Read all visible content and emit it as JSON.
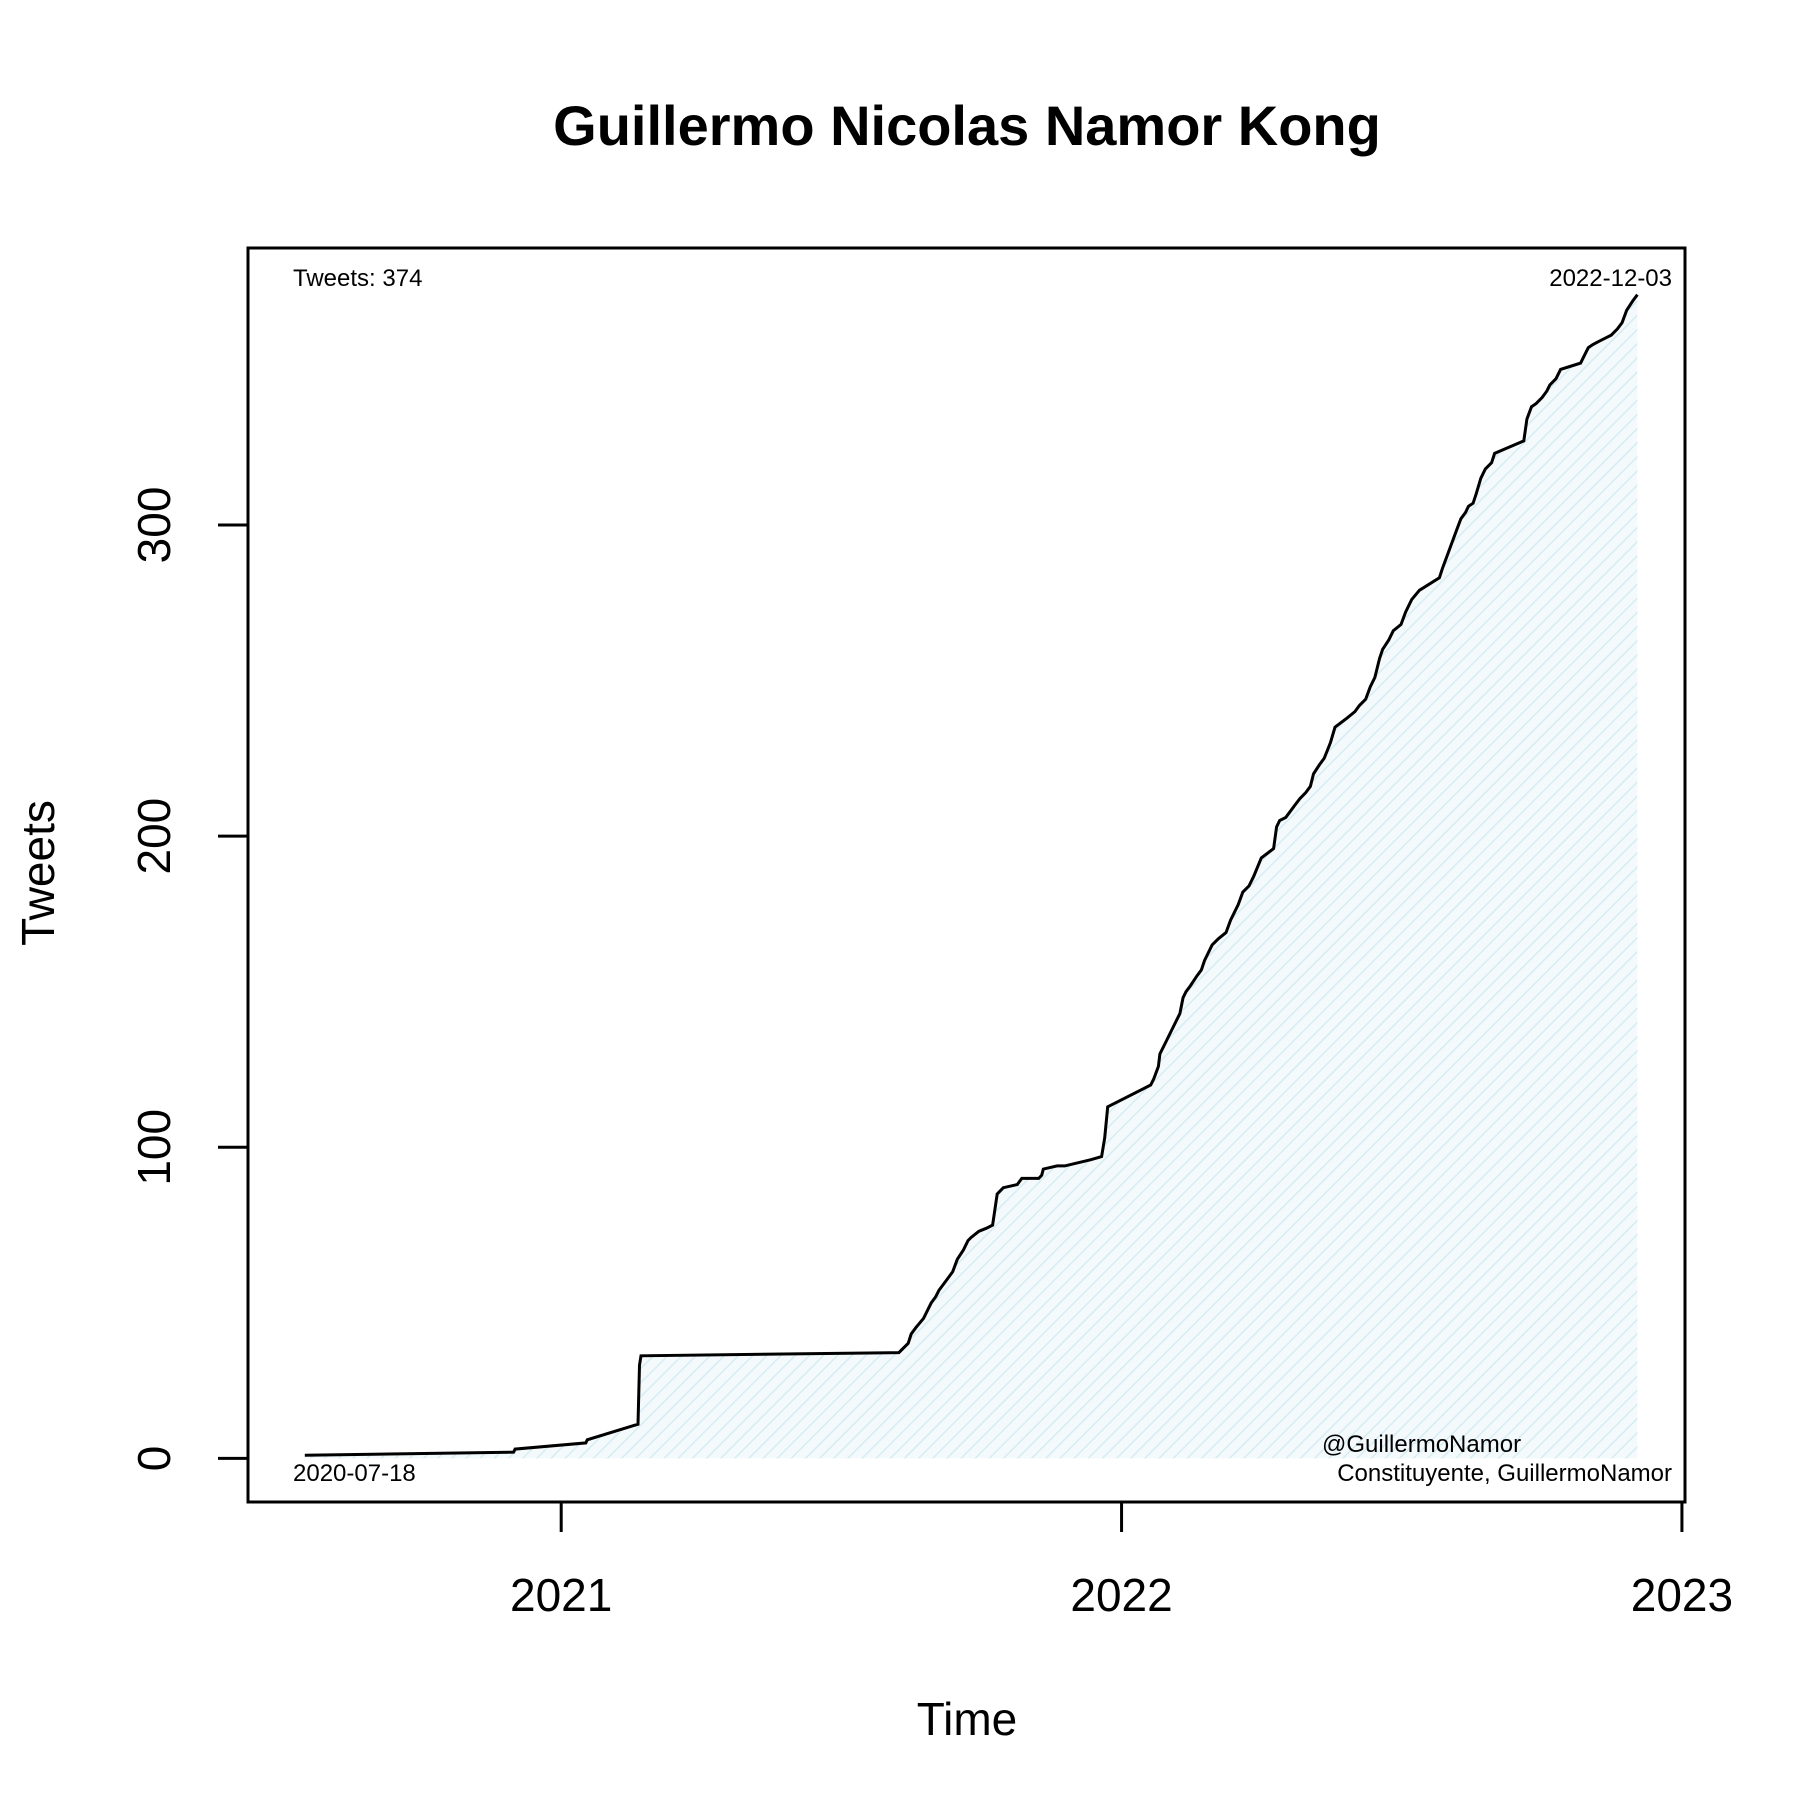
{
  "chart_data": {
    "type": "line",
    "title": "Guillermo Nicolas Namor Kong",
    "xlabel": "Time",
    "ylabel": "Tweets",
    "x_ticks": [
      "2021-01-01",
      "2022-01-01",
      "2023-01-01"
    ],
    "x_tick_labels": [
      "2021",
      "2022",
      "2023"
    ],
    "y_ticks": [
      0,
      100,
      200,
      300
    ],
    "y_tick_labels": [
      "0",
      "100",
      "200",
      "300"
    ],
    "xlim": [
      "2020-06-11",
      "2023-01-03"
    ],
    "ylim": [
      -14,
      389
    ],
    "grid": false,
    "fill": "area under curve (light blue hatched)",
    "annotations": {
      "count_label": "Tweets: 374",
      "start_date": "2020-07-18",
      "end_date": "2022-12-03",
      "handle": "@GuillermoNamor",
      "description": "Constituyente, GuillermoNamor"
    },
    "series": [
      {
        "x": [
          "2020-07-18",
          "2020-12-01",
          "2020-12-02",
          "2021-01-17",
          "2021-01-18",
          "2021-02-20",
          "2021-02-21",
          "2021-02-22",
          "2021-08-09",
          "2021-08-15",
          "2021-08-17",
          "2021-08-20",
          "2021-08-25",
          "2021-08-27",
          "2021-08-30",
          "2021-09-02",
          "2021-09-04",
          "2021-09-10",
          "2021-09-13",
          "2021-09-16",
          "2021-09-20",
          "2021-09-23",
          "2021-09-25",
          "2021-09-30",
          "2021-10-05",
          "2021-10-09",
          "2021-10-12",
          "2021-10-16",
          "2021-10-25",
          "2021-10-28",
          "2021-11-08",
          "2021-11-10",
          "2021-11-11",
          "2021-11-20",
          "2021-11-25",
          "2021-12-12",
          "2021-12-19",
          "2021-12-21",
          "2021-12-23",
          "2022-01-20",
          "2022-01-22",
          "2022-01-25",
          "2022-01-26",
          "2022-01-30",
          "2022-02-02",
          "2022-02-05",
          "2022-02-08",
          "2022-02-10",
          "2022-02-12",
          "2022-02-15",
          "2022-02-19",
          "2022-02-22",
          "2022-02-24",
          "2022-03-01",
          "2022-03-05",
          "2022-03-10",
          "2022-03-13",
          "2022-03-18",
          "2022-03-21",
          "2022-03-25",
          "2022-03-28",
          "2022-04-02",
          "2022-04-10",
          "2022-04-12",
          "2022-04-14",
          "2022-04-18",
          "2022-04-21",
          "2022-04-24",
          "2022-04-27",
          "2022-05-01",
          "2022-05-04",
          "2022-05-06",
          "2022-05-10",
          "2022-05-13",
          "2022-05-17",
          "2022-05-20",
          "2022-05-28",
          "2022-06-02",
          "2022-06-05",
          "2022-06-09",
          "2022-06-12",
          "2022-06-15",
          "2022-06-18",
          "2022-06-20",
          "2022-06-24",
          "2022-06-27",
          "2022-07-02",
          "2022-07-05",
          "2022-07-09",
          "2022-07-14",
          "2022-07-27",
          "2022-07-29",
          "2022-08-01",
          "2022-08-04",
          "2022-08-07",
          "2022-08-10",
          "2022-08-13",
          "2022-08-15",
          "2022-08-18",
          "2022-08-20",
          "2022-08-23",
          "2022-08-26",
          "2022-08-30",
          "2022-09-01",
          "2022-09-20",
          "2022-09-22",
          "2022-09-25",
          "2022-09-28",
          "2022-10-02",
          "2022-10-05",
          "2022-10-07",
          "2022-10-11",
          "2022-10-14",
          "2022-10-27",
          "2022-10-30",
          "2022-11-01",
          "2022-11-04",
          "2022-11-08",
          "2022-11-12",
          "2022-11-16",
          "2022-11-20",
          "2022-11-23",
          "2022-11-26",
          "2022-11-30",
          "2022-12-03"
        ],
        "y": [
          1,
          2,
          3,
          5,
          6,
          11,
          30,
          33,
          34,
          37,
          40,
          42,
          45,
          47,
          50,
          52,
          54,
          58,
          60,
          64,
          67,
          70,
          71,
          73,
          74,
          75,
          85,
          87,
          88,
          90,
          90,
          91,
          93,
          94,
          94,
          96,
          97,
          103,
          113,
          120,
          122,
          126,
          130,
          134,
          137,
          140,
          143,
          148,
          150,
          152,
          155,
          157,
          160,
          165,
          167,
          169,
          173,
          178,
          182,
          184,
          187,
          193,
          196,
          203,
          205,
          206,
          208,
          210,
          212,
          214,
          216,
          220,
          223,
          225,
          230,
          235,
          238,
          240,
          242,
          244,
          248,
          251,
          257,
          260,
          263,
          266,
          268,
          272,
          276,
          279,
          283,
          286,
          290,
          294,
          298,
          302,
          304,
          306,
          307,
          310,
          315,
          318,
          320,
          323,
          327,
          334,
          338,
          339,
          341,
          343,
          345,
          347,
          350,
          352,
          355,
          357,
          358,
          359,
          360,
          361,
          363,
          365,
          369,
          372,
          374
        ]
      }
    ]
  }
}
